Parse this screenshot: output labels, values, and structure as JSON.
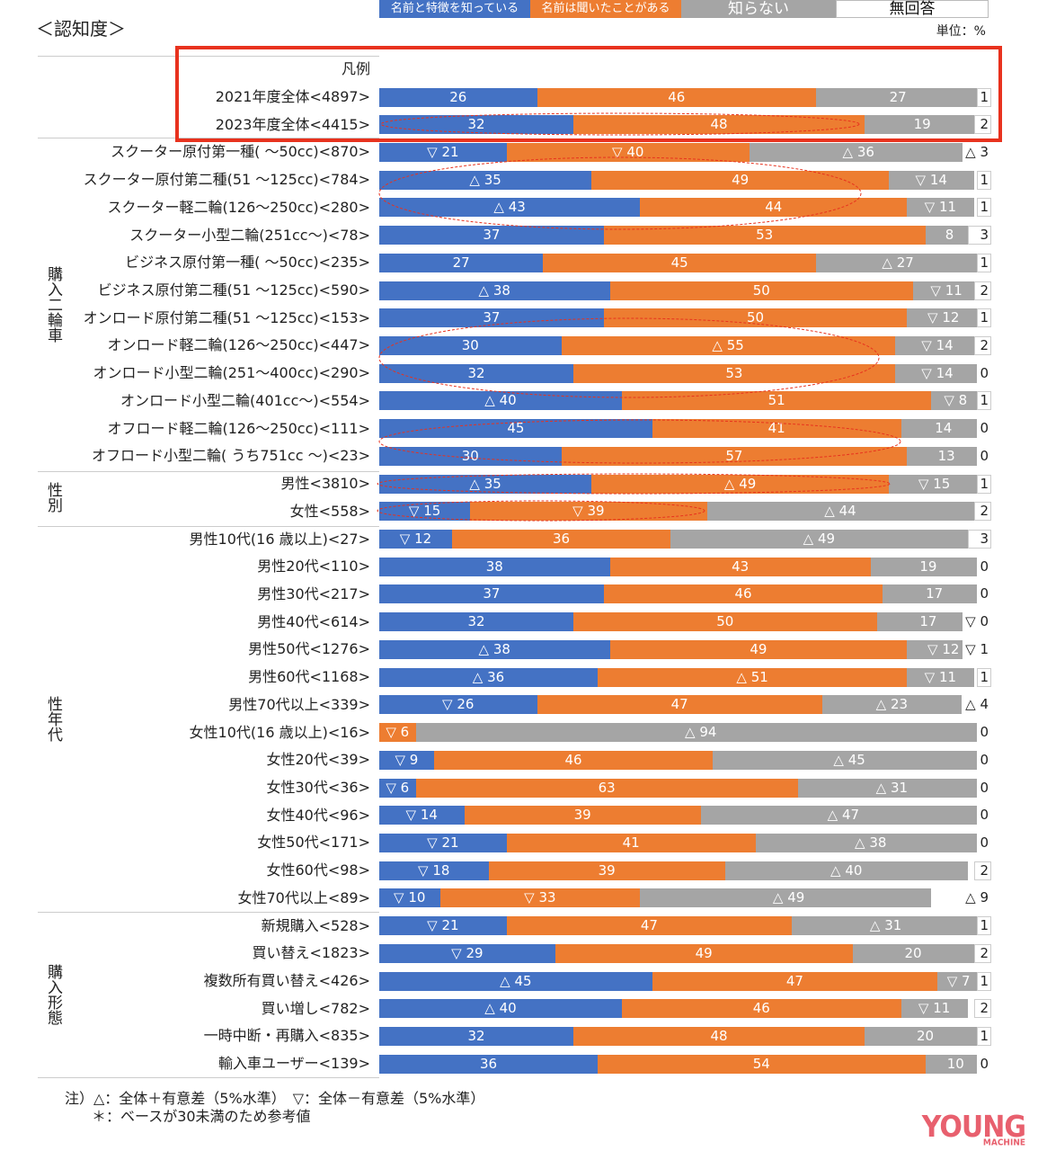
{
  "title": "＜認知度＞",
  "unit": "単位：%",
  "legend": {
    "label": "凡例",
    "items": [
      "名前と特徴を知っている",
      "名前は聞いたことがある",
      "知らない",
      "無回答"
    ]
  },
  "colors": {
    "know": "#4472C4",
    "heard": "#ED7D31",
    "unknown": "#A5A5A5",
    "na": "#FFFFFF",
    "annotation": "#E8321E"
  },
  "groups": [
    {
      "label": "購入二輪車",
      "from": 2,
      "to": 13
    },
    {
      "label": "性別",
      "from": 14,
      "to": 15
    },
    {
      "label": "性年代",
      "from": 16,
      "to": 29
    },
    {
      "label": "購入形態",
      "from": 30,
      "to": 35
    }
  ],
  "chart_data": {
    "type": "bar",
    "stacked": true,
    "orientation": "horizontal",
    "xlim": [
      0,
      100
    ],
    "series_names": [
      "名前と特徴を知っている",
      "名前は聞いたことがある",
      "知らない",
      "無回答"
    ],
    "rows": [
      {
        "label": "2021年度全体<4897>",
        "values": [
          26,
          46,
          27,
          1
        ],
        "marks": [
          "",
          "",
          "",
          ""
        ]
      },
      {
        "label": "2023年度全体<4415>",
        "values": [
          32,
          48,
          19,
          2
        ],
        "marks": [
          "",
          "",
          "",
          ""
        ]
      },
      {
        "label": "スクーター原付第一種( ～50cc)<870>",
        "values": [
          21,
          40,
          36,
          3
        ],
        "marks": [
          "▽",
          "▽",
          "△",
          "△"
        ]
      },
      {
        "label": "スクーター原付第二種(51 ～125cc)<784>",
        "values": [
          35,
          49,
          14,
          1
        ],
        "marks": [
          "△",
          "",
          "▽",
          ""
        ]
      },
      {
        "label": "スクーター軽二輪(126～250cc)<280>",
        "values": [
          43,
          44,
          11,
          1
        ],
        "marks": [
          "△",
          "",
          "▽",
          ""
        ]
      },
      {
        "label": "スクーター小型二輪(251cc～)<78>",
        "values": [
          37,
          53,
          8,
          3
        ],
        "marks": [
          "",
          "",
          "",
          ""
        ]
      },
      {
        "label": "ビジネス原付第一種( ～50cc)<235>",
        "values": [
          27,
          45,
          27,
          1
        ],
        "marks": [
          "",
          "",
          "△",
          ""
        ]
      },
      {
        "label": "ビジネス原付第二種(51 ～125cc)<590>",
        "values": [
          38,
          50,
          11,
          2
        ],
        "marks": [
          "△",
          "",
          "▽",
          ""
        ]
      },
      {
        "label": "オンロード原付第二種(51 ～125cc)<153>",
        "values": [
          37,
          50,
          12,
          1
        ],
        "marks": [
          "",
          "",
          "▽",
          ""
        ]
      },
      {
        "label": "オンロード軽二輪(126～250cc)<447>",
        "values": [
          30,
          55,
          14,
          2
        ],
        "marks": [
          "",
          "△",
          "▽",
          ""
        ]
      },
      {
        "label": "オンロード小型二輪(251～400cc)<290>",
        "values": [
          32,
          53,
          14,
          0
        ],
        "marks": [
          "",
          "",
          "▽",
          ""
        ]
      },
      {
        "label": "オンロード小型二輪(401cc～)<554>",
        "values": [
          40,
          51,
          8,
          1
        ],
        "marks": [
          "△",
          "",
          "▽",
          ""
        ]
      },
      {
        "label": "オフロード軽二輪(126～250cc)<111>",
        "values": [
          45,
          41,
          14,
          0
        ],
        "marks": [
          "",
          "",
          "",
          ""
        ]
      },
      {
        "label": "オフロード小型二輪( うち751cc ～)<23>",
        "values": [
          30,
          57,
          13,
          0
        ],
        "marks": [
          "",
          "",
          "",
          ""
        ]
      },
      {
        "label": "男性<3810>",
        "values": [
          35,
          49,
          15,
          1
        ],
        "marks": [
          "△",
          "△",
          "▽",
          ""
        ]
      },
      {
        "label": "女性<558>",
        "values": [
          15,
          39,
          44,
          2
        ],
        "marks": [
          "▽",
          "▽",
          "△",
          ""
        ]
      },
      {
        "label": "男性10代(16 歳以上)<27>",
        "values": [
          12,
          36,
          49,
          3
        ],
        "marks": [
          "▽",
          "",
          "△",
          ""
        ]
      },
      {
        "label": "男性20代<110>",
        "values": [
          38,
          43,
          19,
          0
        ],
        "marks": [
          "",
          "",
          "",
          ""
        ]
      },
      {
        "label": "男性30代<217>",
        "values": [
          37,
          46,
          17,
          0
        ],
        "marks": [
          "",
          "",
          "",
          ""
        ]
      },
      {
        "label": "男性40代<614>",
        "values": [
          32,
          50,
          17,
          0
        ],
        "marks": [
          "",
          "",
          "",
          "▽"
        ]
      },
      {
        "label": "男性50代<1276>",
        "values": [
          38,
          49,
          12,
          1
        ],
        "marks": [
          "△",
          "",
          "▽",
          "▽"
        ]
      },
      {
        "label": "男性60代<1168>",
        "values": [
          36,
          51,
          11,
          1
        ],
        "marks": [
          "△",
          "△",
          "▽",
          ""
        ]
      },
      {
        "label": "男性70代以上<339>",
        "values": [
          26,
          47,
          23,
          4
        ],
        "marks": [
          "▽",
          "",
          "△",
          "△"
        ]
      },
      {
        "label": "女性10代(16 歳以上)<16>",
        "values": [
          0,
          6,
          94,
          0
        ],
        "marks": [
          "",
          "▽",
          "△",
          ""
        ]
      },
      {
        "label": "女性20代<39>",
        "values": [
          9,
          46,
          45,
          0
        ],
        "marks": [
          "▽",
          "",
          "△",
          ""
        ]
      },
      {
        "label": "女性30代<36>",
        "values": [
          6,
          63,
          31,
          0
        ],
        "marks": [
          "▽",
          "",
          "△",
          ""
        ]
      },
      {
        "label": "女性40代<96>",
        "values": [
          14,
          39,
          47,
          0
        ],
        "marks": [
          "▽",
          "",
          "△",
          ""
        ]
      },
      {
        "label": "女性50代<171>",
        "values": [
          21,
          41,
          38,
          0
        ],
        "marks": [
          "▽",
          "",
          "△",
          ""
        ]
      },
      {
        "label": "女性60代<98>",
        "values": [
          18,
          39,
          40,
          2
        ],
        "marks": [
          "▽",
          "",
          "△",
          ""
        ]
      },
      {
        "label": "女性70代以上<89>",
        "values": [
          10,
          33,
          49,
          9
        ],
        "marks": [
          "▽",
          "▽",
          "△",
          "△"
        ]
      },
      {
        "label": "新規購入<528>",
        "values": [
          21,
          47,
          31,
          1
        ],
        "marks": [
          "▽",
          "",
          "△",
          ""
        ]
      },
      {
        "label": "買い替え<1823>",
        "values": [
          29,
          49,
          20,
          2
        ],
        "marks": [
          "▽",
          "",
          "",
          ""
        ]
      },
      {
        "label": "複数所有買い替え<426>",
        "values": [
          45,
          47,
          7,
          1
        ],
        "marks": [
          "△",
          "",
          "▽",
          ""
        ]
      },
      {
        "label": "買い増し<782>",
        "values": [
          40,
          46,
          11,
          2
        ],
        "marks": [
          "△",
          "",
          "▽",
          ""
        ]
      },
      {
        "label": "一時中断・再購入<835>",
        "values": [
          32,
          48,
          20,
          1
        ],
        "marks": [
          "",
          "",
          "",
          ""
        ]
      },
      {
        "label": "輸入車ユーザー<139>",
        "values": [
          36,
          54,
          10,
          0
        ],
        "marks": [
          "",
          "",
          "",
          ""
        ]
      }
    ]
  },
  "notes": [
    "注）△：全体＋有意差（5%水準）　▽：全体－有意差（5%水準）",
    "＊：ベースが30未満のため参考値"
  ],
  "logo": {
    "main": "YOUNG",
    "sub": "ヤングマシン MACHINE"
  }
}
